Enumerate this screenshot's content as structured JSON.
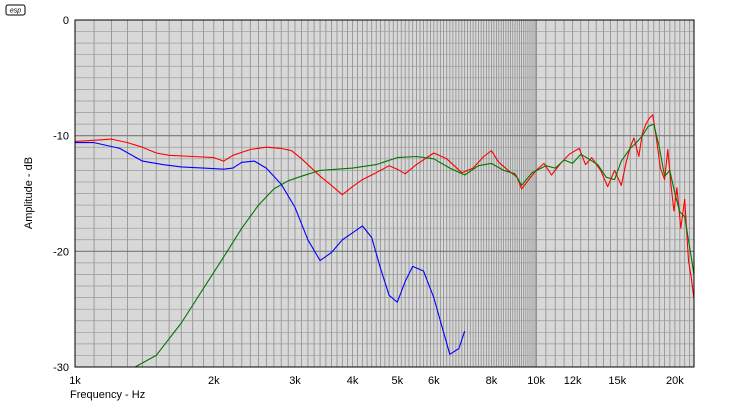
{
  "logo": {
    "text": "esp"
  },
  "chart_data": {
    "type": "line",
    "xlabel": "Frequency - Hz",
    "ylabel": "Amplitude - dB",
    "x_scale": "log",
    "xlim": [
      1000,
      22000
    ],
    "ylim": [
      -30,
      0
    ],
    "grid": true,
    "x_ticks": [
      {
        "value": 1000,
        "label": "1k"
      },
      {
        "value": 2000,
        "label": "2k"
      },
      {
        "value": 3000,
        "label": "3k"
      },
      {
        "value": 4000,
        "label": "4k"
      },
      {
        "value": 5000,
        "label": "5k"
      },
      {
        "value": 6000,
        "label": "6k"
      },
      {
        "value": 8000,
        "label": "8k"
      },
      {
        "value": 10000,
        "label": "10k"
      },
      {
        "value": 12000,
        "label": "12k"
      },
      {
        "value": 15000,
        "label": "15k"
      },
      {
        "value": 20000,
        "label": "20k"
      }
    ],
    "y_ticks": [
      {
        "value": 0,
        "label": "0"
      },
      {
        "value": -10,
        "label": "-10"
      },
      {
        "value": -20,
        "label": "-20"
      },
      {
        "value": -30,
        "label": "-30"
      }
    ],
    "series": [
      {
        "color": "#ff0000",
        "points": [
          [
            1000,
            -10.5
          ],
          [
            1100,
            -10.4
          ],
          [
            1200,
            -10.3
          ],
          [
            1300,
            -10.6
          ],
          [
            1400,
            -11.0
          ],
          [
            1500,
            -11.5
          ],
          [
            1600,
            -11.7
          ],
          [
            1800,
            -11.8
          ],
          [
            2000,
            -11.9
          ],
          [
            2100,
            -12.2
          ],
          [
            2200,
            -11.7
          ],
          [
            2400,
            -11.2
          ],
          [
            2600,
            -11.0
          ],
          [
            2800,
            -11.1
          ],
          [
            2950,
            -11.3
          ],
          [
            3100,
            -12.0
          ],
          [
            3400,
            -13.5
          ],
          [
            3600,
            -14.3
          ],
          [
            3800,
            -15.1
          ],
          [
            4000,
            -14.4
          ],
          [
            4200,
            -13.8
          ],
          [
            4500,
            -13.2
          ],
          [
            4800,
            -12.6
          ],
          [
            5000,
            -12.9
          ],
          [
            5200,
            -13.3
          ],
          [
            5500,
            -12.5
          ],
          [
            6000,
            -11.5
          ],
          [
            6400,
            -12.0
          ],
          [
            6900,
            -13.2
          ],
          [
            7300,
            -12.8
          ],
          [
            7700,
            -11.8
          ],
          [
            8000,
            -11.3
          ],
          [
            8300,
            -12.3
          ],
          [
            8700,
            -13.0
          ],
          [
            9100,
            -13.6
          ],
          [
            9300,
            -14.6
          ],
          [
            9600,
            -13.9
          ],
          [
            10000,
            -13.0
          ],
          [
            10400,
            -12.4
          ],
          [
            10800,
            -13.4
          ],
          [
            11300,
            -12.4
          ],
          [
            11800,
            -11.6
          ],
          [
            12400,
            -11.1
          ],
          [
            12800,
            -12.5
          ],
          [
            13200,
            -11.9
          ],
          [
            13800,
            -13.0
          ],
          [
            14300,
            -14.4
          ],
          [
            14800,
            -13.0
          ],
          [
            15300,
            -14.3
          ],
          [
            15700,
            -12.2
          ],
          [
            16000,
            -11.0
          ],
          [
            16300,
            -10.2
          ],
          [
            16700,
            -11.8
          ],
          [
            17000,
            -9.8
          ],
          [
            17300,
            -9.0
          ],
          [
            17600,
            -8.5
          ],
          [
            17900,
            -8.2
          ],
          [
            18200,
            -10.0
          ],
          [
            18600,
            -12.8
          ],
          [
            19000,
            -13.8
          ],
          [
            19300,
            -11.2
          ],
          [
            19600,
            -14.2
          ],
          [
            19900,
            -16.5
          ],
          [
            20200,
            -14.5
          ],
          [
            20600,
            -18.0
          ],
          [
            21000,
            -15.5
          ],
          [
            21400,
            -20.8
          ],
          [
            21700,
            -22.3
          ],
          [
            22000,
            -24.1
          ]
        ]
      },
      {
        "color": "#007700",
        "points": [
          [
            1350,
            -30.0
          ],
          [
            1500,
            -29.0
          ],
          [
            1700,
            -26.2
          ],
          [
            1900,
            -23.2
          ],
          [
            2100,
            -20.5
          ],
          [
            2300,
            -18.0
          ],
          [
            2500,
            -16.0
          ],
          [
            2700,
            -14.6
          ],
          [
            2900,
            -13.9
          ],
          [
            3100,
            -13.5
          ],
          [
            3400,
            -13.0
          ],
          [
            3700,
            -12.9
          ],
          [
            4000,
            -12.8
          ],
          [
            4500,
            -12.5
          ],
          [
            5000,
            -11.9
          ],
          [
            5500,
            -11.8
          ],
          [
            6000,
            -12.0
          ],
          [
            6500,
            -12.8
          ],
          [
            7000,
            -13.4
          ],
          [
            7500,
            -12.6
          ],
          [
            8000,
            -12.4
          ],
          [
            8500,
            -13.0
          ],
          [
            9000,
            -13.3
          ],
          [
            9300,
            -14.3
          ],
          [
            9800,
            -13.2
          ],
          [
            10500,
            -12.6
          ],
          [
            11000,
            -12.8
          ],
          [
            11500,
            -12.1
          ],
          [
            12000,
            -12.4
          ],
          [
            12500,
            -11.6
          ],
          [
            13000,
            -12.0
          ],
          [
            13600,
            -12.5
          ],
          [
            14200,
            -13.6
          ],
          [
            14800,
            -13.8
          ],
          [
            15300,
            -12.2
          ],
          [
            16000,
            -11.1
          ],
          [
            16500,
            -10.6
          ],
          [
            17000,
            -10.0
          ],
          [
            17500,
            -9.2
          ],
          [
            18000,
            -9.0
          ],
          [
            18500,
            -11.0
          ],
          [
            19000,
            -13.5
          ],
          [
            19500,
            -13.0
          ],
          [
            20000,
            -15.0
          ],
          [
            20500,
            -16.6
          ],
          [
            21000,
            -17.0
          ],
          [
            21500,
            -19.5
          ],
          [
            22000,
            -22.0
          ]
        ]
      },
      {
        "color": "#0000ff",
        "points": [
          [
            1000,
            -10.6
          ],
          [
            1100,
            -10.6
          ],
          [
            1250,
            -11.1
          ],
          [
            1400,
            -12.2
          ],
          [
            1550,
            -12.5
          ],
          [
            1700,
            -12.7
          ],
          [
            1900,
            -12.8
          ],
          [
            2100,
            -12.9
          ],
          [
            2200,
            -12.8
          ],
          [
            2300,
            -12.3
          ],
          [
            2450,
            -12.2
          ],
          [
            2600,
            -12.8
          ],
          [
            2800,
            -14.2
          ],
          [
            3000,
            -16.2
          ],
          [
            3200,
            -19.0
          ],
          [
            3400,
            -20.8
          ],
          [
            3600,
            -20.1
          ],
          [
            3800,
            -19.0
          ],
          [
            4000,
            -18.4
          ],
          [
            4200,
            -17.8
          ],
          [
            4400,
            -18.8
          ],
          [
            4600,
            -21.5
          ],
          [
            4800,
            -23.8
          ],
          [
            5000,
            -24.4
          ],
          [
            5200,
            -22.6
          ],
          [
            5400,
            -21.3
          ],
          [
            5700,
            -21.7
          ],
          [
            6000,
            -24.0
          ],
          [
            6300,
            -27.0
          ],
          [
            6500,
            -28.9
          ],
          [
            6800,
            -28.4
          ],
          [
            7000,
            -26.9
          ]
        ]
      }
    ]
  }
}
